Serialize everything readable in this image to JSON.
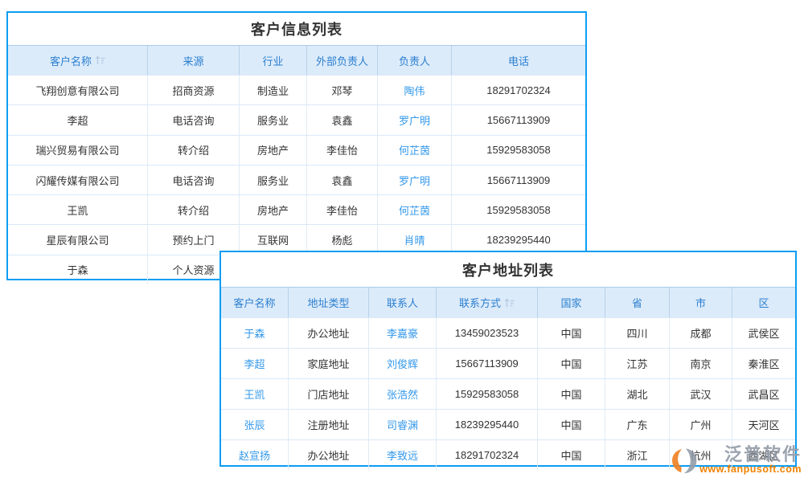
{
  "colors": {
    "card_border": "#0c9df2",
    "header_bg": "#dcebfa",
    "header_text": "#2b7fd0",
    "link_blue": "#3398eb",
    "cell_text": "#333333",
    "watermark_orange": "#ef8201",
    "watermark_gray": "#949ca8"
  },
  "table1": {
    "title": "客户信息列表",
    "headers": [
      "客户名称",
      "来源",
      "行业",
      "外部负责人",
      "负责人",
      "电话"
    ],
    "sorted_header": "客户名称",
    "sort_icon": "sort-asc-icon",
    "rows": [
      [
        "飞翔创意有限公司",
        "招商资源",
        "制造业",
        "邓琴",
        "陶伟",
        "18291702324"
      ],
      [
        "李超",
        "电话咨询",
        "服务业",
        "袁鑫",
        "罗广明",
        "15667113909"
      ],
      [
        "瑞兴贸易有限公司",
        "转介绍",
        "房地产",
        "李佳怡",
        "何芷茵",
        "15929583058"
      ],
      [
        "闪耀传媒有限公司",
        "电话咨询",
        "服务业",
        "袁鑫",
        "罗广明",
        "15667113909"
      ],
      [
        "王凯",
        "转介绍",
        "房地产",
        "李佳怡",
        "何芷茵",
        "15929583058"
      ],
      [
        "星辰有限公司",
        "预约上门",
        "互联网",
        "杨彪",
        "肖晴",
        "18239295440"
      ],
      [
        "于森",
        "个人资源",
        "",
        "",
        "",
        ""
      ]
    ],
    "link_columns": [
      4
    ]
  },
  "table2": {
    "title": "客户地址列表",
    "headers": [
      "客户名称",
      "地址类型",
      "联系人",
      "联系方式",
      "国家",
      "省",
      "市",
      "区"
    ],
    "sorted_header": "联系方式",
    "sort_icon": "sort-asc-icon",
    "rows": [
      [
        "于森",
        "办公地址",
        "李嘉豪",
        "13459023523",
        "中国",
        "四川",
        "成都",
        "武侯区"
      ],
      [
        "李超",
        "家庭地址",
        "刘俊辉",
        "15667113909",
        "中国",
        "江苏",
        "南京",
        "秦淮区"
      ],
      [
        "王凯",
        "门店地址",
        "张浩然",
        "15929583058",
        "中国",
        "湖北",
        "武汉",
        "武昌区"
      ],
      [
        "张辰",
        "注册地址",
        "司睿渊",
        "18239295440",
        "中国",
        "广东",
        "广州",
        "天河区"
      ],
      [
        "赵宣扬",
        "办公地址",
        "李致远",
        "18291702324",
        "中国",
        "浙江",
        "杭州",
        "西湖区"
      ]
    ],
    "link_columns": [
      0,
      2
    ]
  },
  "watermark": {
    "brand": "泛普软件",
    "url": "www.fanpusoft.com",
    "logo_icon": "fanpu-logo-icon"
  }
}
